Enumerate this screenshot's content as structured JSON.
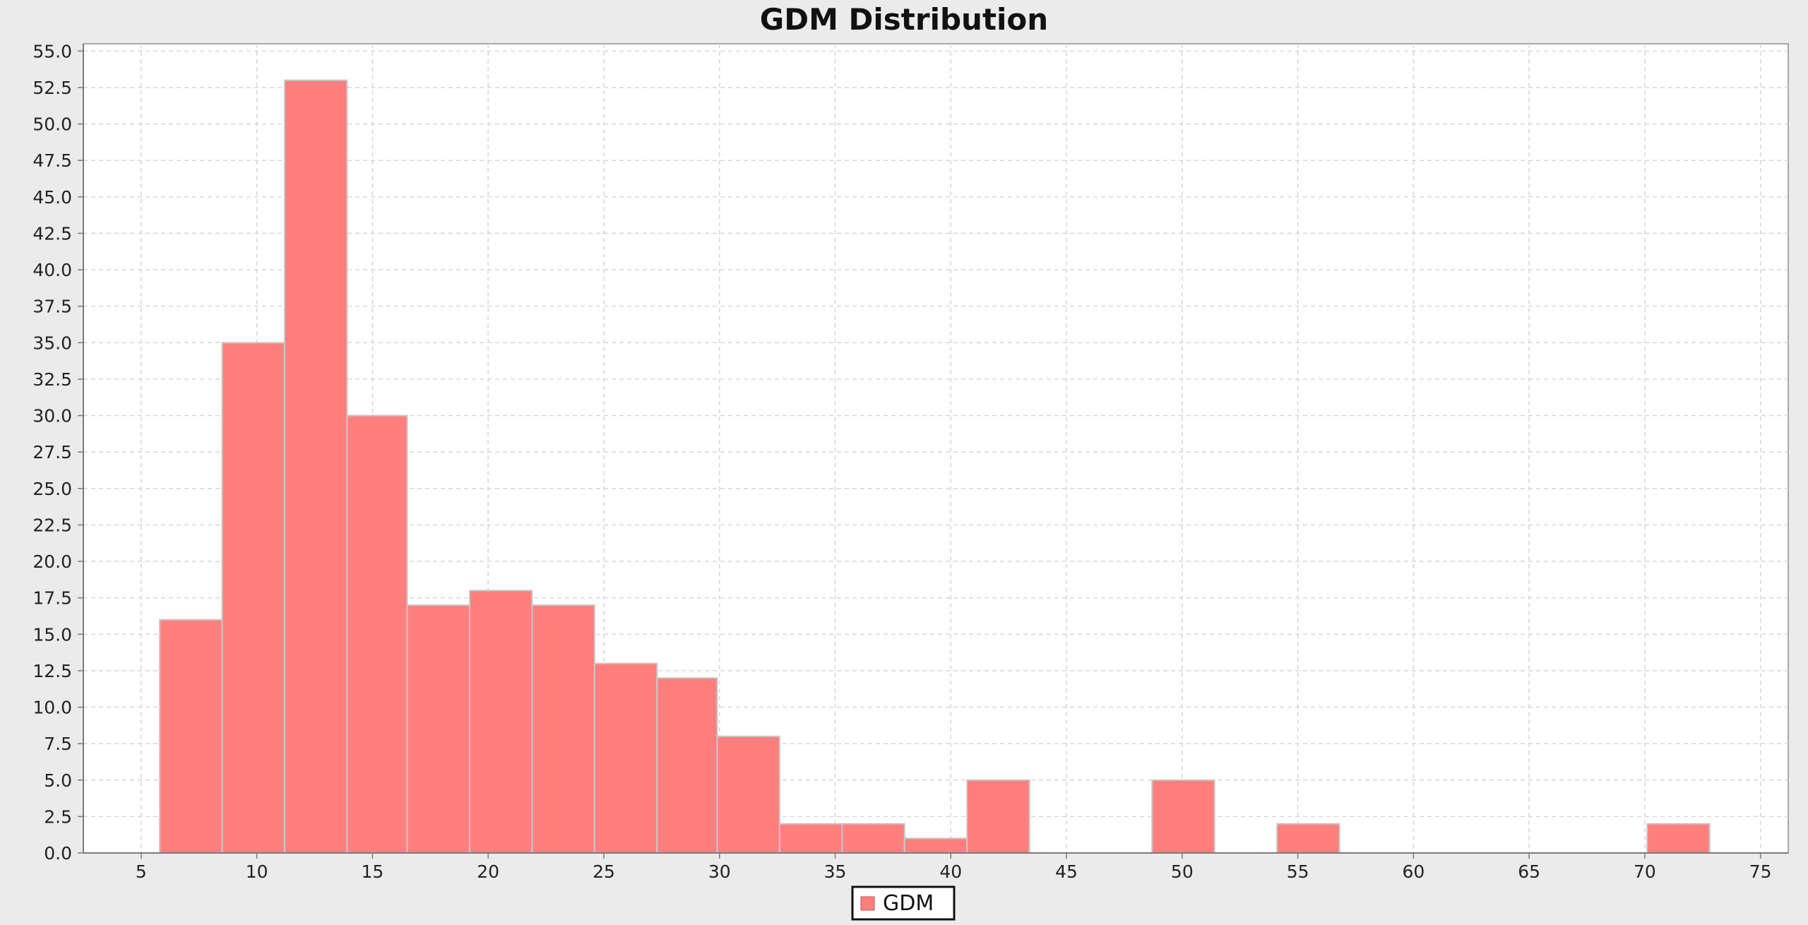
{
  "chart_data": {
    "type": "bar",
    "title": "GDM Distribution",
    "xlabel": "",
    "ylabel": "",
    "xlim": [
      2.5,
      76.2
    ],
    "ylim": [
      0,
      55.5
    ],
    "x_ticks": [
      5,
      10,
      15,
      20,
      25,
      30,
      35,
      40,
      45,
      50,
      55,
      60,
      65,
      70,
      75
    ],
    "x_tick_labels": [
      "5",
      "10",
      "15",
      "20",
      "25",
      "30",
      "35",
      "40",
      "45",
      "50",
      "55",
      "60",
      "65",
      "70",
      "75"
    ],
    "y_ticks": [
      0,
      2.5,
      5,
      7.5,
      10,
      12.5,
      15,
      17.5,
      20,
      22.5,
      25,
      27.5,
      30,
      32.5,
      35,
      37.5,
      40,
      42.5,
      45,
      47.5,
      50,
      52.5,
      55
    ],
    "y_tick_labels": [
      "0.0",
      "2.5",
      "5.0",
      "7.5",
      "10.0",
      "12.5",
      "15.0",
      "17.5",
      "20.0",
      "22.5",
      "25.0",
      "27.5",
      "30.0",
      "32.5",
      "35.0",
      "37.5",
      "40.0",
      "42.5",
      "45.0",
      "47.5",
      "50.0",
      "52.5",
      "55.0"
    ],
    "grid": true,
    "legend_position": "bottom-center",
    "series": [
      {
        "name": "GDM",
        "color": "#ff7f7f",
        "bins": [
          {
            "x0": 5.8,
            "x1": 8.5,
            "value": 16
          },
          {
            "x0": 8.5,
            "x1": 11.2,
            "value": 35
          },
          {
            "x0": 11.2,
            "x1": 13.9,
            "value": 53
          },
          {
            "x0": 13.9,
            "x1": 16.5,
            "value": 30
          },
          {
            "x0": 16.5,
            "x1": 19.2,
            "value": 17
          },
          {
            "x0": 19.2,
            "x1": 21.9,
            "value": 18
          },
          {
            "x0": 21.9,
            "x1": 24.6,
            "value": 17
          },
          {
            "x0": 24.6,
            "x1": 27.3,
            "value": 13
          },
          {
            "x0": 27.3,
            "x1": 29.9,
            "value": 12
          },
          {
            "x0": 29.9,
            "x1": 32.6,
            "value": 8
          },
          {
            "x0": 32.6,
            "x1": 35.3,
            "value": 2
          },
          {
            "x0": 35.3,
            "x1": 38.0,
            "value": 2
          },
          {
            "x0": 38.0,
            "x1": 40.7,
            "value": 1
          },
          {
            "x0": 40.7,
            "x1": 43.4,
            "value": 5
          },
          {
            "x0": 48.7,
            "x1": 51.4,
            "value": 5
          },
          {
            "x0": 54.1,
            "x1": 56.8,
            "value": 2
          },
          {
            "x0": 70.1,
            "x1": 72.8,
            "value": 2
          }
        ]
      }
    ]
  }
}
